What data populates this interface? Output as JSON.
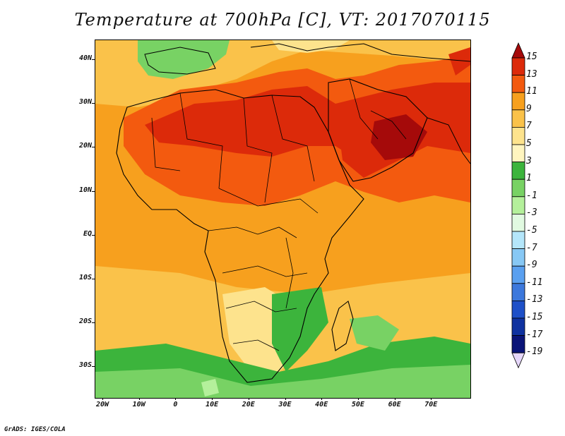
{
  "title": "Temperature at 700hPa [C], VT: 2017070115",
  "credit": "GrADS: IGES/COLA",
  "map": {
    "region": "Africa, Middle East and Arabian Peninsula",
    "projection": "latitude-longitude",
    "lat_labels": [
      "40N",
      "30N",
      "20N",
      "10N",
      "EQ",
      "10S",
      "20S",
      "30S"
    ],
    "lon_labels": [
      "20W",
      "10W",
      "0",
      "10E",
      "20E",
      "30E",
      "40E",
      "50E",
      "60E",
      "70E"
    ],
    "boundaries": [
      "coastlines",
      "country borders"
    ]
  },
  "colorbar": {
    "labels": [
      "15",
      "13",
      "11",
      "9",
      "7",
      "5",
      "3",
      "1",
      "-1",
      "-3",
      "-5",
      "-7",
      "-9",
      "-11",
      "-13",
      "-15",
      "-17",
      "-19"
    ],
    "colors": [
      "#a50a0a",
      "#dc2a0a",
      "#f35a0f",
      "#f7a01e",
      "#fac24a",
      "#fde38d",
      "#fff5bf",
      "#3cb43c",
      "#78d264",
      "#b4f09b",
      "#e1fae1",
      "#b4e6fa",
      "#87c8f5",
      "#5aa0f0",
      "#3c78dc",
      "#1e50c8",
      "#0f32a0",
      "#0a1478",
      "#e6d7fa"
    ]
  },
  "chart_data": {
    "type": "heatmap",
    "title": "Temperature at 700hPa [C], VT: 2017070115",
    "variable": "Temperature",
    "level": "700hPa",
    "units": "C",
    "valid_time": "2017070115",
    "x_ticks": [
      "20W",
      "10W",
      "0",
      "10E",
      "20E",
      "30E",
      "40E",
      "50E",
      "60E",
      "70E"
    ],
    "y_ticks": [
      "40N",
      "30N",
      "20N",
      "10N",
      "EQ",
      "10S",
      "20S",
      "30S"
    ],
    "color_scale_levels": [
      15,
      13,
      11,
      9,
      7,
      5,
      3,
      1,
      -1,
      -3,
      -5,
      -7,
      -9,
      -11,
      -13,
      -15,
      -17,
      -19
    ],
    "observed_range_approx": [
      -3,
      15
    ]
  }
}
